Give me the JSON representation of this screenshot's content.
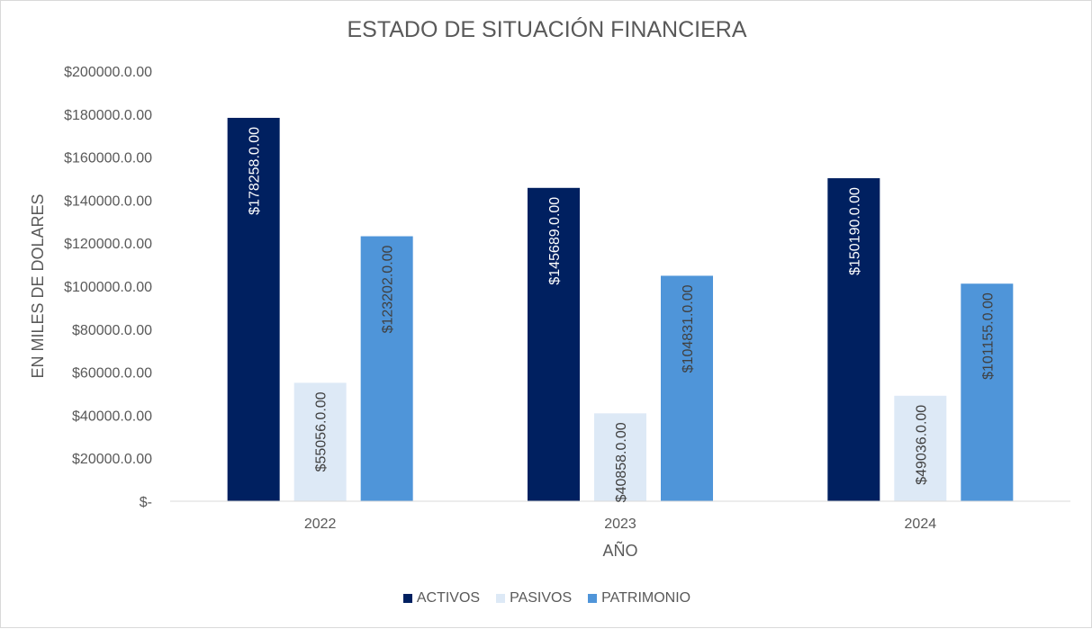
{
  "chart_data": {
    "type": "bar",
    "title": "ESTADO DE SITUACIÓN FINANCIERA",
    "xlabel": "AÑO",
    "ylabel": "EN MILES DE DOLARES",
    "categories": [
      "2022",
      "2023",
      "2024"
    ],
    "ylim": [
      0,
      200000
    ],
    "yticks": [
      {
        "value": 0,
        "label": "$-"
      },
      {
        "value": 20000,
        "label": "$20000.0.00"
      },
      {
        "value": 40000,
        "label": "$40000.0.00"
      },
      {
        "value": 60000,
        "label": "$60000.0.00"
      },
      {
        "value": 80000,
        "label": "$80000.0.00"
      },
      {
        "value": 100000,
        "label": "$100000.0.00"
      },
      {
        "value": 120000,
        "label": "$120000.0.00"
      },
      {
        "value": 140000,
        "label": "$140000.0.00"
      },
      {
        "value": 160000,
        "label": "$160000.0.00"
      },
      {
        "value": 180000,
        "label": "$180000.0.00"
      },
      {
        "value": 200000,
        "label": "$200000.0.00"
      }
    ],
    "grid": false,
    "legend_position": "bottom",
    "series": [
      {
        "name": "ACTIVOS",
        "color": "#002060",
        "label_color": "#ffffff",
        "values": [
          178258,
          145689,
          150190
        ],
        "labels": [
          "$178258.0.00",
          "$145689.0.00",
          "$150190.0.00"
        ]
      },
      {
        "name": "PASIVOS",
        "color": "#dde9f6",
        "label_color": "#404040",
        "values": [
          55056,
          40858,
          49036
        ],
        "labels": [
          "$55056.0.00",
          "$40858.0.00",
          "$49036.0.00"
        ]
      },
      {
        "name": "PATRIMONIO",
        "color": "#4f95d9",
        "label_color": "#404040",
        "values": [
          123202,
          104831,
          101155
        ],
        "labels": [
          "$123202.0.00",
          "$104831.0.00",
          "$101155.0.00"
        ]
      }
    ]
  }
}
